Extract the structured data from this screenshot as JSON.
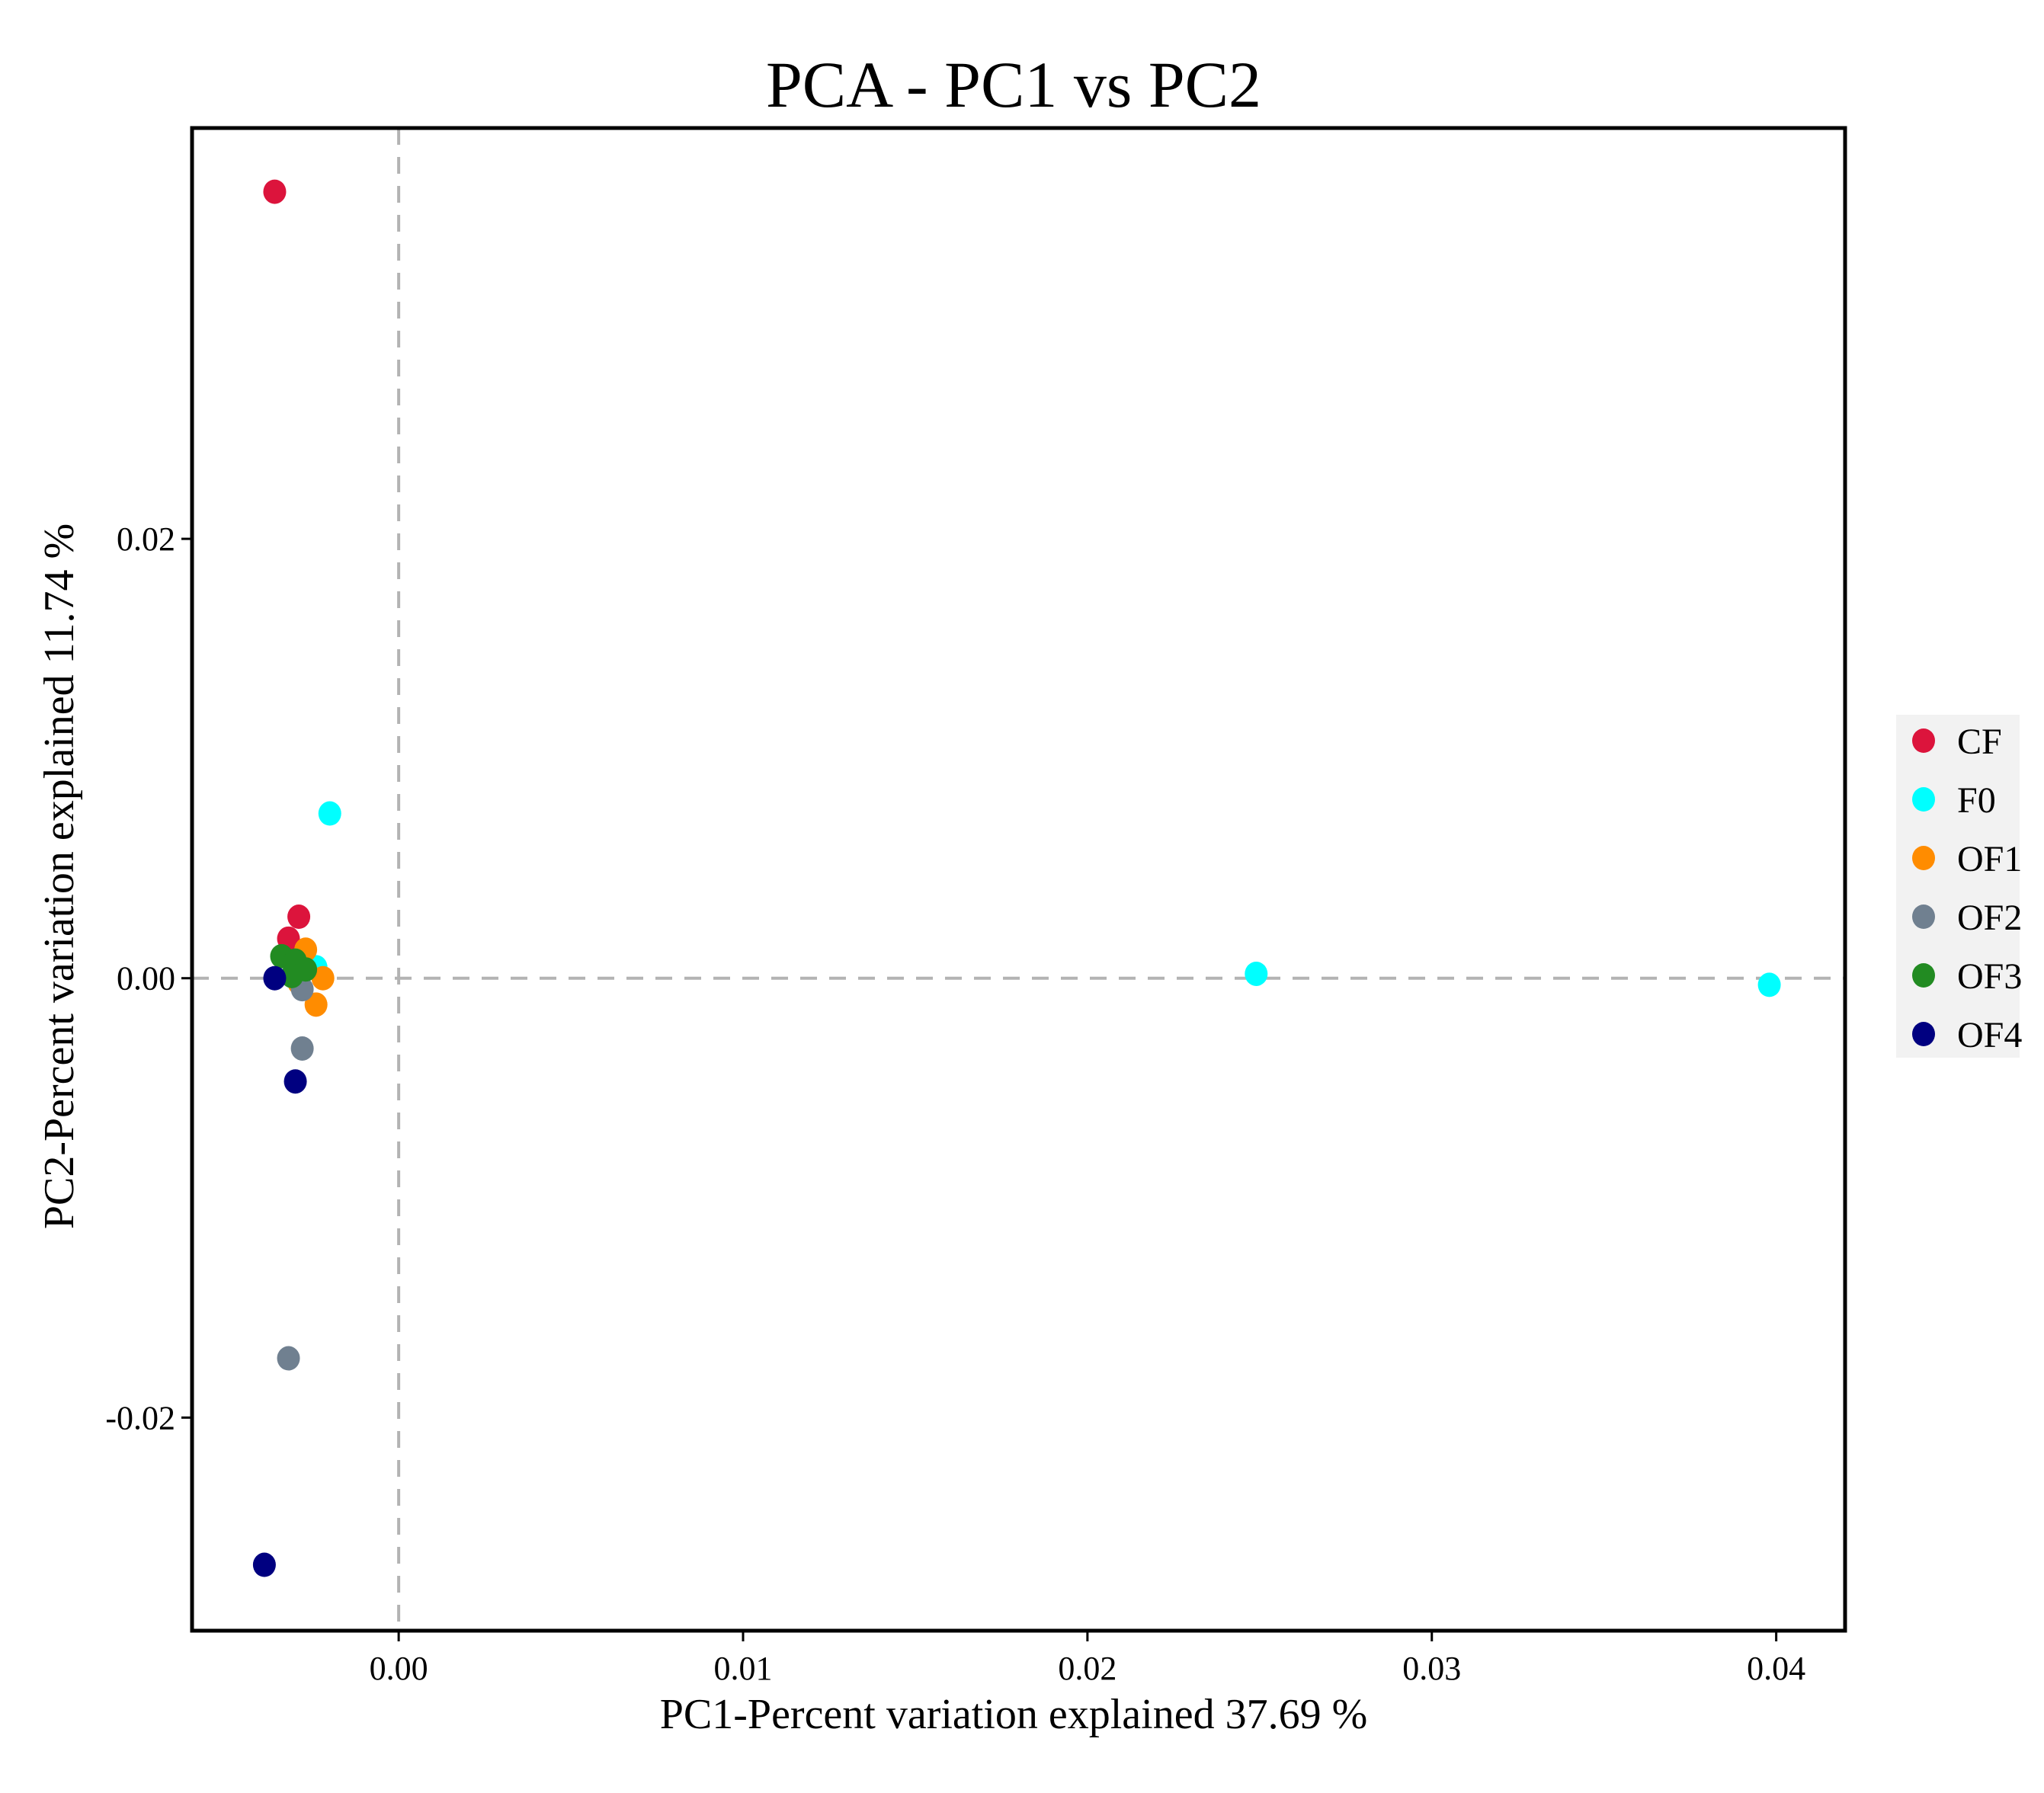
{
  "chart_data": {
    "type": "scatter",
    "title": "PCA - PC1 vs PC2",
    "xlabel": "PC1-Percent variation explained 37.69 %",
    "ylabel": "PC2-Percent variation explained 11.74 %",
    "xlim": [
      -0.006,
      0.042
    ],
    "ylim": [
      -0.0297,
      0.0387
    ],
    "x_ticks": [
      0.0,
      0.01,
      0.02,
      0.03,
      0.04
    ],
    "x_tick_labels": [
      "0.00",
      "0.01",
      "0.02",
      "0.03",
      "0.04"
    ],
    "y_ticks": [
      0.02,
      0.0,
      -0.02
    ],
    "y_tick_labels": [
      "0.02",
      "0.00",
      "-0.02"
    ],
    "reference_lines": {
      "x": 0,
      "y": 0,
      "style": "dashed",
      "color": "#b3b3b3"
    },
    "grid": false,
    "legend_position": "right",
    "series": [
      {
        "name": "CF",
        "color": "#dc143c",
        "points": [
          [
            -0.0036,
            0.0358
          ],
          [
            -0.0029,
            0.0028
          ],
          [
            -0.0032,
            0.0018
          ],
          [
            -0.0031,
            0.001
          ]
        ]
      },
      {
        "name": "F0",
        "color": "#00ffff",
        "points": [
          [
            -0.002,
            0.0075
          ],
          [
            -0.0024,
            0.0005
          ],
          [
            0.0249,
            0.0002
          ],
          [
            0.0398,
            -0.0003
          ]
        ]
      },
      {
        "name": "OF1",
        "color": "#ff8c00",
        "points": [
          [
            -0.0027,
            0.0013
          ],
          [
            -0.0022,
            0.0
          ],
          [
            -0.0029,
            -0.0002
          ],
          [
            -0.0024,
            -0.0012
          ]
        ]
      },
      {
        "name": "OF2",
        "color": "#708090",
        "points": [
          [
            -0.0028,
            -0.0005
          ],
          [
            -0.0028,
            -0.0032
          ],
          [
            -0.0032,
            -0.0173
          ]
        ]
      },
      {
        "name": "OF3",
        "color": "#228b22",
        "points": [
          [
            -0.0034,
            0.001
          ],
          [
            -0.003,
            0.0008
          ],
          [
            -0.0031,
            0.0001
          ],
          [
            -0.0027,
            0.0004
          ]
        ]
      },
      {
        "name": "OF4",
        "color": "#000080",
        "points": [
          [
            -0.0036,
            0.0
          ],
          [
            -0.003,
            -0.0047
          ],
          [
            -0.0039,
            -0.0267
          ]
        ]
      }
    ]
  }
}
